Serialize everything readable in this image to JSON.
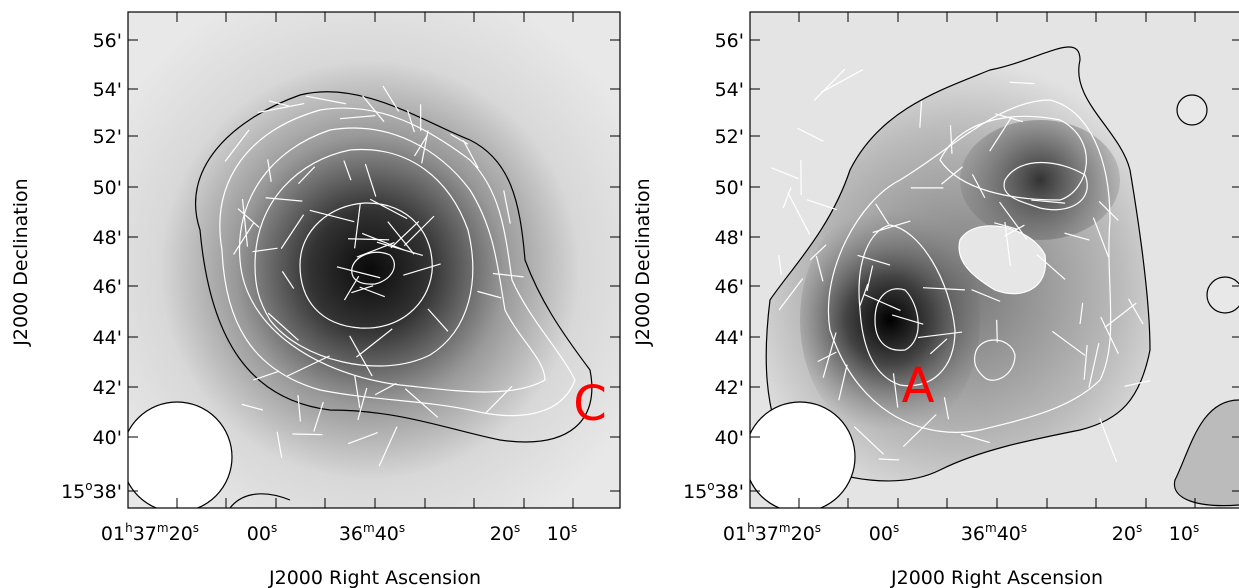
{
  "panels": [
    {
      "annotation": "C",
      "x_label": "J2000 Right Ascension",
      "y_label": "J2000 Declination",
      "dec_ticks": [
        [
          "56'"
        ],
        [
          "54'"
        ],
        [
          "52'"
        ],
        [
          "50'"
        ],
        [
          "48'"
        ],
        [
          "46'"
        ],
        [
          "44'"
        ],
        [
          "42'"
        ],
        [
          "40'"
        ],
        [
          "15",
          "o",
          "38'"
        ]
      ],
      "ra_ticks": [
        [
          "01",
          "h",
          "37",
          "m",
          "20",
          "s"
        ],
        [
          "00",
          "s"
        ],
        [
          "36",
          "m",
          "40",
          "s"
        ],
        [
          "20",
          "s"
        ],
        [
          "10",
          "s"
        ]
      ]
    },
    {
      "annotation": "A",
      "x_label": "J2000 Right Ascension",
      "y_label": "J2000 Declination",
      "dec_ticks": [
        [
          "56'"
        ],
        [
          "54'"
        ],
        [
          "52'"
        ],
        [
          "50'"
        ],
        [
          "48'"
        ],
        [
          "46'"
        ],
        [
          "44'"
        ],
        [
          "42'"
        ],
        [
          "40'"
        ],
        [
          "15",
          "o",
          "38'"
        ]
      ],
      "ra_ticks": [
        [
          "01",
          "h",
          "37",
          "m",
          "20",
          "s"
        ],
        [
          "00",
          "s"
        ],
        [
          "36",
          "m",
          "40",
          "s"
        ],
        [
          "20",
          "s"
        ],
        [
          "10",
          "s"
        ]
      ]
    }
  ]
}
